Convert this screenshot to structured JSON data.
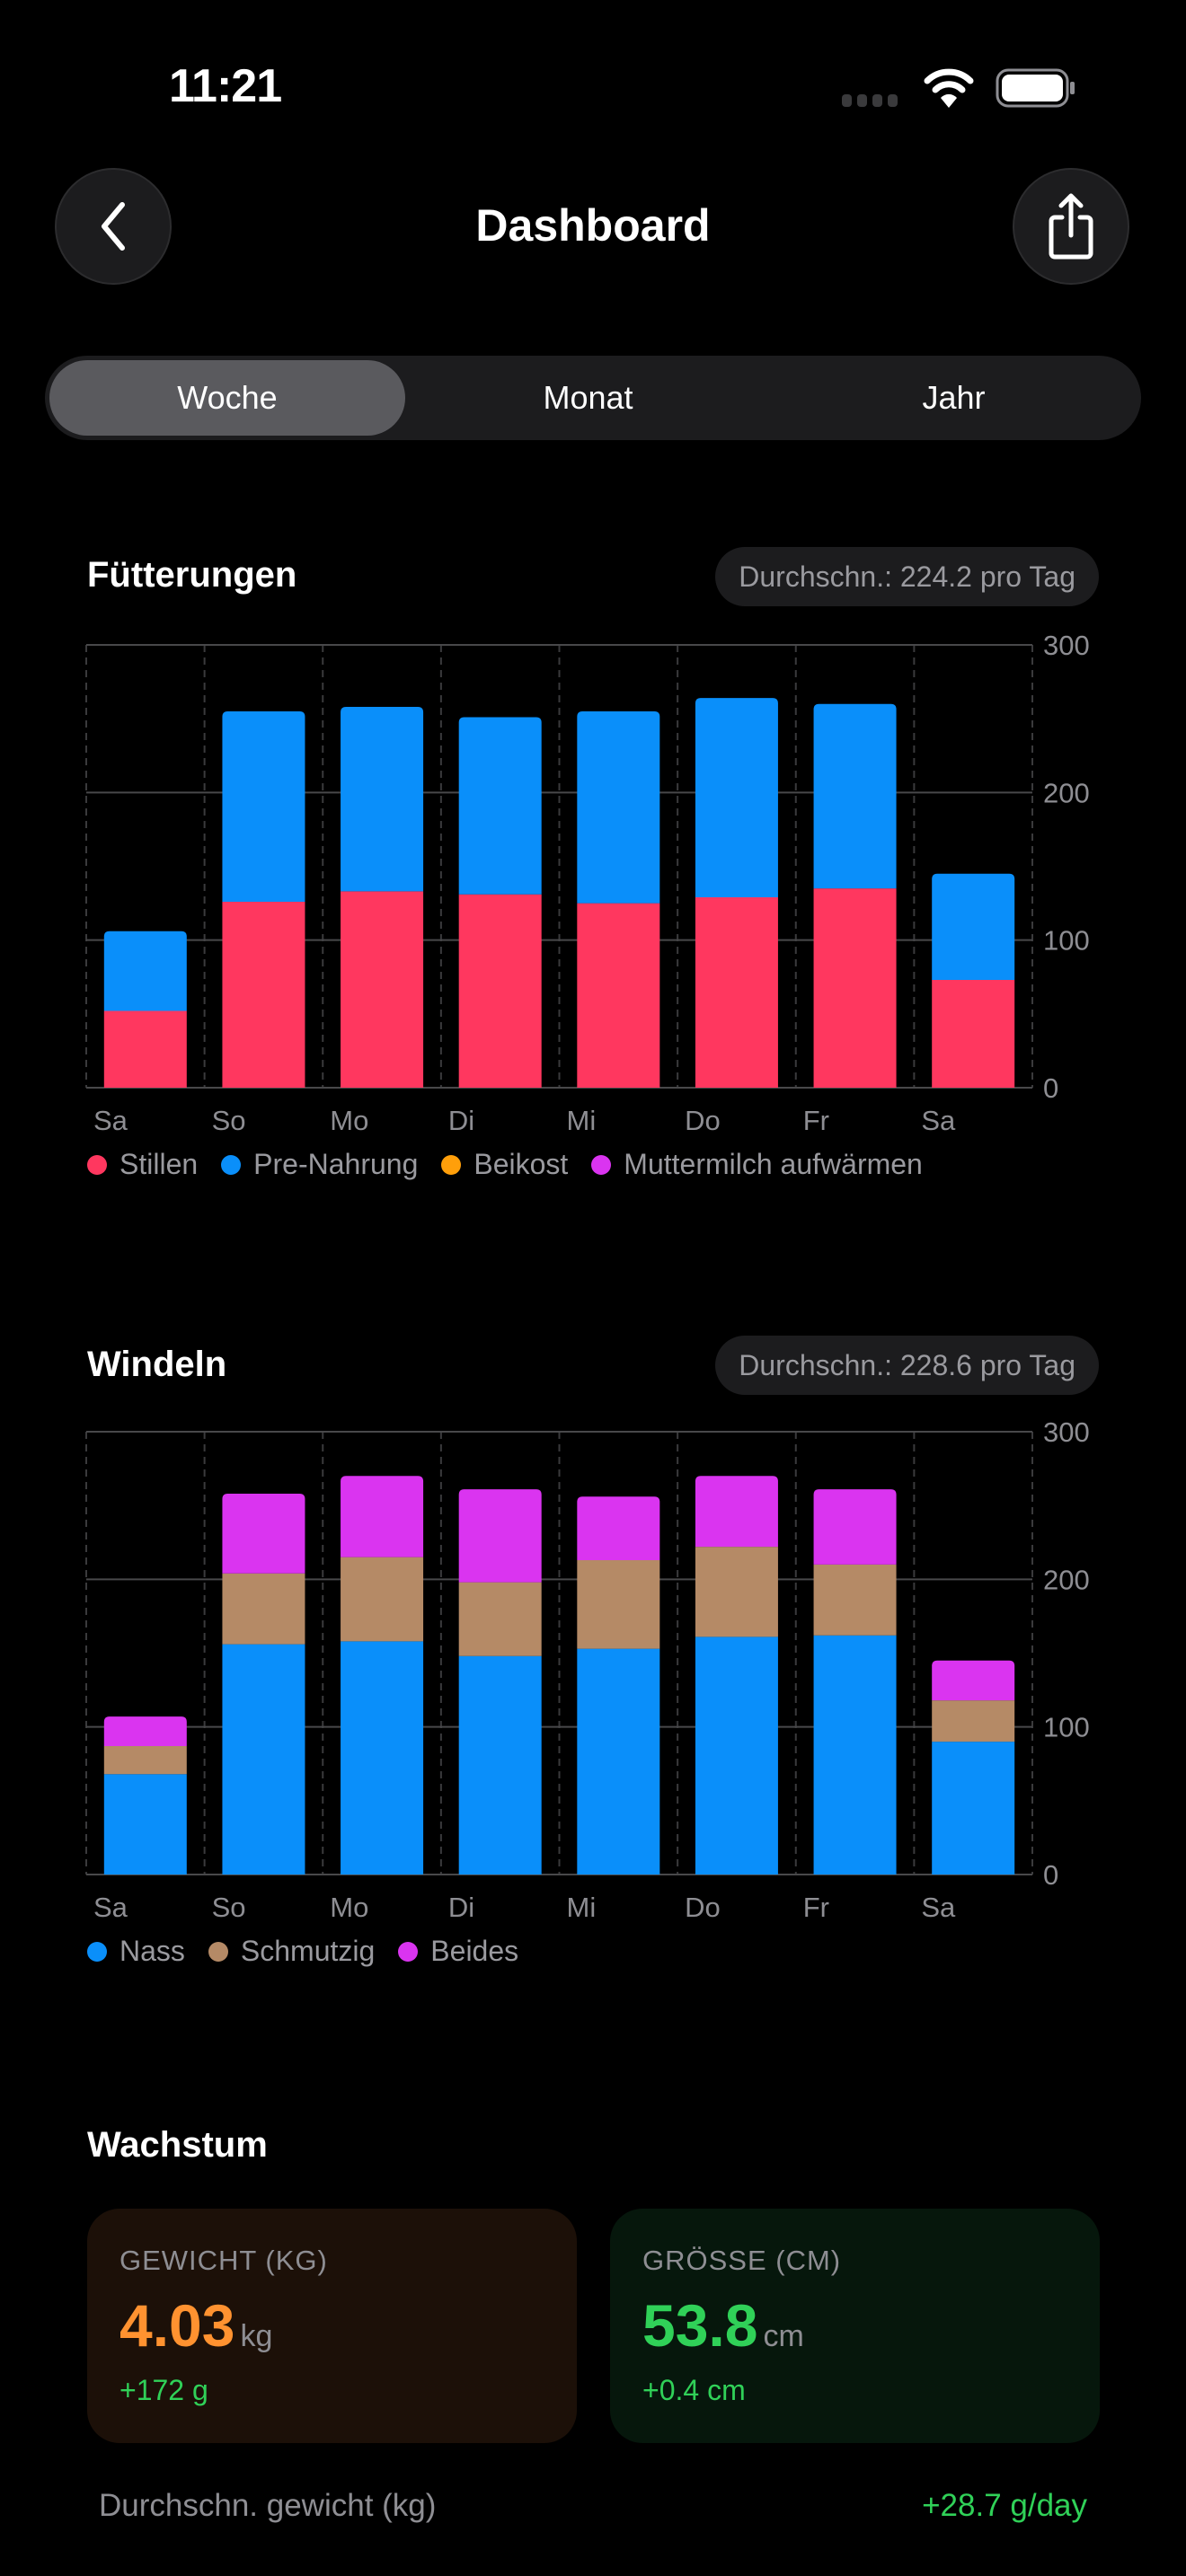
{
  "status_bar": {
    "time": "11:21"
  },
  "nav": {
    "title": "Dashboard",
    "back_icon": "chevron-left-icon",
    "share_icon": "share-icon"
  },
  "segmented": {
    "options": [
      "Woche",
      "Monat",
      "Jahr"
    ],
    "selected": "Woche"
  },
  "colors": {
    "stillen": "#ff375f",
    "pre_nahrung": "#0a8ffa",
    "beikost": "#ff9f0a",
    "muttermilch": "#da34f0",
    "nass": "#0a8ffa",
    "schmutzig": "#b58a66",
    "beides": "#da34f0",
    "weight_accent": "#ff9230",
    "green": "#30d158"
  },
  "feeding": {
    "title": "Fütterungen",
    "badge": "Durchschn.: 224.2 pro Tag",
    "legend": [
      "Stillen",
      "Pre-Nahrung",
      "Beikost",
      "Muttermilch aufwärmen"
    ]
  },
  "diapers": {
    "title": "Windeln",
    "badge": "Durchschn.: 228.6 pro Tag",
    "legend": [
      "Nass",
      "Schmutzig",
      "Beides"
    ]
  },
  "chart_data": [
    {
      "type": "bar",
      "stacked": true,
      "categories": [
        "Sa",
        "So",
        "Mo",
        "Di",
        "Mi",
        "Do",
        "Fr",
        "Sa"
      ],
      "series": [
        {
          "name": "Stillen",
          "values": [
            52,
            126,
            133,
            131,
            125,
            129,
            135,
            73
          ]
        },
        {
          "name": "Pre-Nahrung",
          "values": [
            54,
            129,
            125,
            120,
            130,
            135,
            125,
            72
          ]
        },
        {
          "name": "Beikost",
          "values": [
            0,
            0,
            0,
            0,
            0,
            0,
            0,
            0
          ]
        },
        {
          "name": "Muttermilch aufwärmen",
          "values": [
            0,
            0,
            0,
            0,
            0,
            0,
            0,
            0
          ]
        }
      ],
      "ylim": [
        0,
        300
      ],
      "yticks": [
        "0",
        "100",
        "200",
        "300"
      ],
      "y_axis_side": "right",
      "grid": true,
      "legend": "bottom"
    },
    {
      "type": "bar",
      "stacked": true,
      "categories": [
        "Sa",
        "So",
        "Mo",
        "Di",
        "Mi",
        "Do",
        "Fr",
        "Sa"
      ],
      "series": [
        {
          "name": "Nass",
          "values": [
            68,
            156,
            158,
            148,
            153,
            161,
            162,
            90
          ]
        },
        {
          "name": "Schmutzig",
          "values": [
            19,
            48,
            57,
            50,
            60,
            61,
            48,
            28
          ]
        },
        {
          "name": "Beides",
          "values": [
            20,
            54,
            55,
            63,
            43,
            48,
            51,
            27
          ]
        }
      ],
      "ylim": [
        0,
        300
      ],
      "yticks": [
        "0",
        "100",
        "200",
        "300"
      ],
      "y_axis_side": "right",
      "grid": true,
      "legend": "bottom"
    }
  ],
  "growth": {
    "title": "Wachstum",
    "weight": {
      "label": "GEWICHT (KG)",
      "value": "4.03",
      "unit": "kg",
      "delta": "+172 g"
    },
    "height": {
      "label": "GRÖSSE (CM)",
      "value": "53.8",
      "unit": "cm",
      "delta": "+0.4 cm"
    },
    "avg_row": {
      "label": "Durchschn. gewicht (kg)",
      "value": "+28.7 g/day"
    }
  }
}
